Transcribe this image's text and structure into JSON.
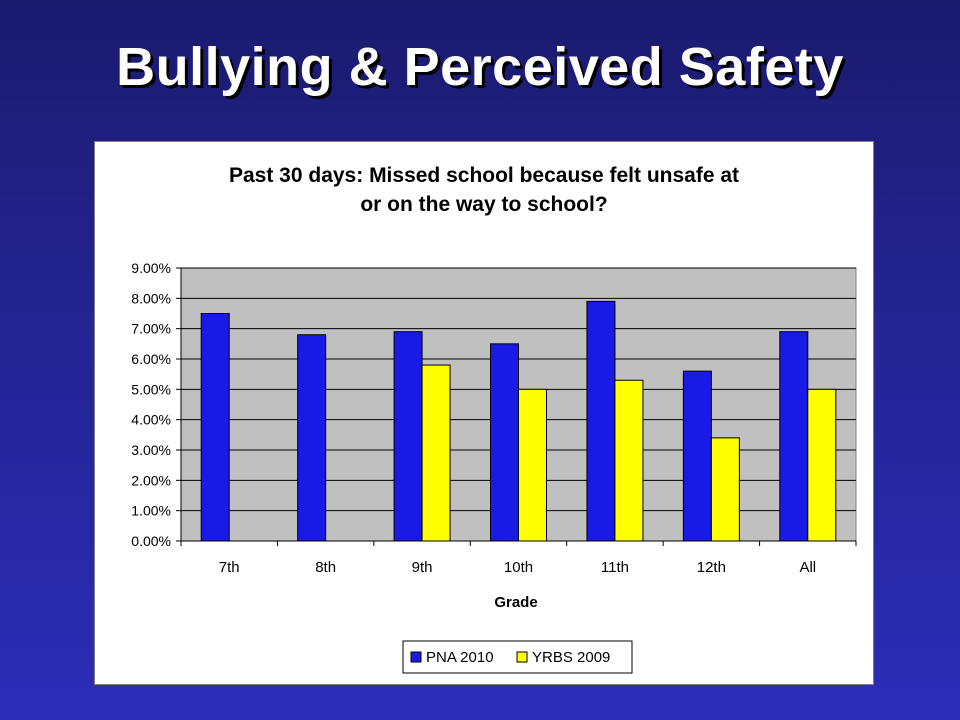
{
  "slide": {
    "title": "Bullying & Perceived Safety"
  },
  "colors": {
    "pna": "#1a1ae6",
    "yrbs": "#ffff00",
    "plot_bg": "#c0c0c0"
  },
  "chart_data": {
    "type": "bar",
    "title": "Past 30 days: Missed school because felt unsafe at or on the way to school?",
    "title_lines": [
      "Past 30 days: Missed school because felt unsafe at",
      "or on the way to school?"
    ],
    "xlabel": "Grade",
    "ylabel": "",
    "categories": [
      "7th",
      "8th",
      "9th",
      "10th",
      "11th",
      "12th",
      "All"
    ],
    "series": [
      {
        "name": "PNA 2010",
        "color": "#1a1ae6",
        "values": [
          7.5,
          6.8,
          6.9,
          6.5,
          7.9,
          5.6,
          6.9
        ]
      },
      {
        "name": "YRBS 2009",
        "color": "#ffff00",
        "values": [
          null,
          null,
          5.8,
          5.0,
          5.3,
          3.4,
          5.0
        ]
      }
    ],
    "ylim": [
      0,
      9
    ],
    "yticks": [
      0,
      1,
      2,
      3,
      4,
      5,
      6,
      7,
      8,
      9
    ],
    "ytick_labels": [
      "0.00%",
      "1.00%",
      "2.00%",
      "3.00%",
      "4.00%",
      "5.00%",
      "6.00%",
      "7.00%",
      "8.00%",
      "9.00%"
    ],
    "grid": true,
    "legend_position": "bottom"
  }
}
